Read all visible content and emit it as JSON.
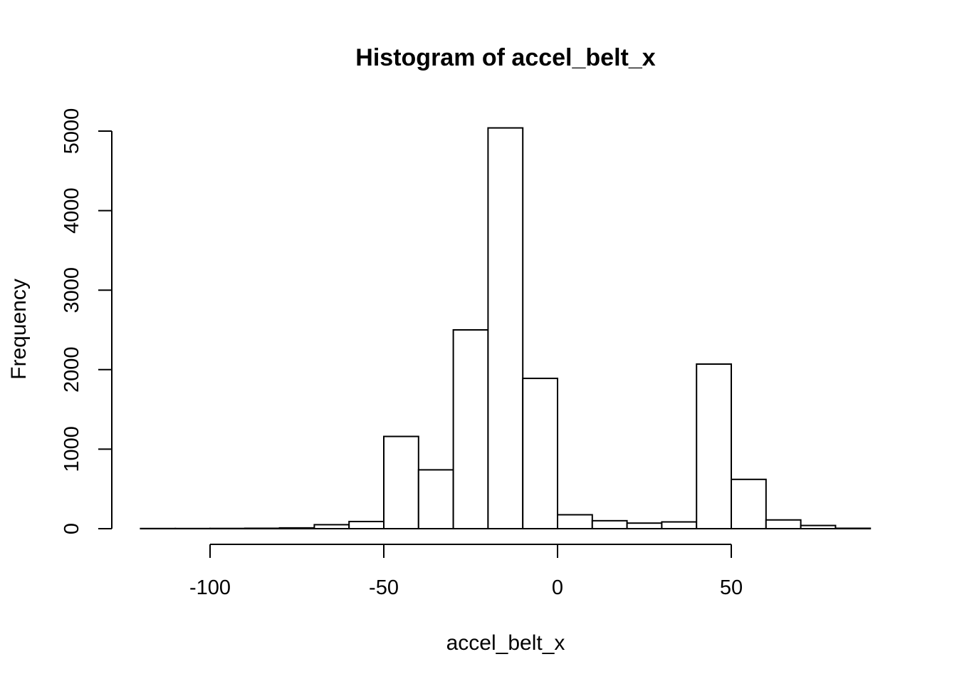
{
  "chart_data": {
    "type": "bar",
    "title": "Histogram of accel_belt_x",
    "xlabel": "accel_belt_x",
    "ylabel": "Frequency",
    "xlim": [
      -120,
      90
    ],
    "ylim": [
      0,
      5000
    ],
    "x_ticks": [
      -100,
      -50,
      0,
      50
    ],
    "x_tick_labels": [
      "-100",
      "-50",
      "0",
      "50"
    ],
    "y_ticks": [
      0,
      1000,
      2000,
      3000,
      4000,
      5000
    ],
    "y_tick_labels": [
      "0",
      "1000",
      "2000",
      "3000",
      "4000",
      "5000"
    ],
    "grid": false,
    "bins": [
      {
        "x0": -120,
        "x1": -110,
        "count": 2
      },
      {
        "x0": -110,
        "x1": -100,
        "count": 2
      },
      {
        "x0": -100,
        "x1": -90,
        "count": 3
      },
      {
        "x0": -90,
        "x1": -80,
        "count": 5
      },
      {
        "x0": -80,
        "x1": -70,
        "count": 10
      },
      {
        "x0": -70,
        "x1": -60,
        "count": 50
      },
      {
        "x0": -60,
        "x1": -50,
        "count": 90
      },
      {
        "x0": -50,
        "x1": -40,
        "count": 1160
      },
      {
        "x0": -40,
        "x1": -30,
        "count": 740
      },
      {
        "x0": -30,
        "x1": -20,
        "count": 2500
      },
      {
        "x0": -20,
        "x1": -10,
        "count": 5040
      },
      {
        "x0": -10,
        "x1": 0,
        "count": 1890
      },
      {
        "x0": 0,
        "x1": 10,
        "count": 175
      },
      {
        "x0": 10,
        "x1": 20,
        "count": 100
      },
      {
        "x0": 20,
        "x1": 30,
        "count": 70
      },
      {
        "x0": 30,
        "x1": 40,
        "count": 85
      },
      {
        "x0": 40,
        "x1": 50,
        "count": 2070
      },
      {
        "x0": 50,
        "x1": 60,
        "count": 620
      },
      {
        "x0": 60,
        "x1": 70,
        "count": 110
      },
      {
        "x0": 70,
        "x1": 80,
        "count": 40
      },
      {
        "x0": 80,
        "x1": 90,
        "count": 5
      }
    ]
  }
}
